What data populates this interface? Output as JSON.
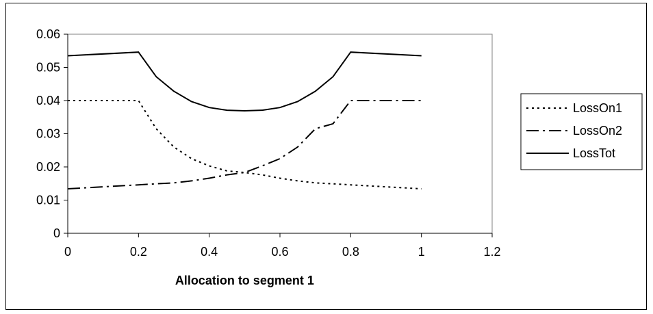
{
  "chart_data": {
    "type": "line",
    "title": "",
    "xlabel": "Allocation to segment 1",
    "ylabel": "",
    "xlim": [
      0,
      1.2
    ],
    "ylim": [
      0,
      0.06
    ],
    "x_ticks": [
      "0",
      "0.2",
      "0.4",
      "0.6",
      "0.8",
      "1",
      "1.2"
    ],
    "y_ticks": [
      "0",
      "0.01",
      "0.02",
      "0.03",
      "0.04",
      "0.05",
      "0.06"
    ],
    "grid": false,
    "legend_position": "right",
    "x": [
      0,
      0.2,
      0.25,
      0.3,
      0.35,
      0.4,
      0.45,
      0.5,
      0.55,
      0.6,
      0.65,
      0.7,
      0.75,
      0.8,
      1
    ],
    "series": [
      {
        "name": "LossOn1",
        "dash": "dotted",
        "values": [
          0.04,
          0.04,
          0.0315,
          0.026,
          0.0225,
          0.0203,
          0.0188,
          0.0183,
          0.0176,
          0.0166,
          0.0158,
          0.0152,
          0.0149,
          0.0146,
          0.0134
        ]
      },
      {
        "name": "LossOn2",
        "dash": "dash-dot",
        "values": [
          0.0134,
          0.0146,
          0.0149,
          0.0152,
          0.0158,
          0.0166,
          0.0176,
          0.0183,
          0.0203,
          0.0225,
          0.026,
          0.0315,
          0.033,
          0.04,
          0.04
        ]
      },
      {
        "name": "LossTot",
        "dash": "solid",
        "values": [
          0.0535,
          0.0546,
          0.0472,
          0.0428,
          0.0397,
          0.0379,
          0.0371,
          0.0369,
          0.0371,
          0.0379,
          0.0397,
          0.0428,
          0.0472,
          0.0546,
          0.0535
        ]
      }
    ]
  }
}
